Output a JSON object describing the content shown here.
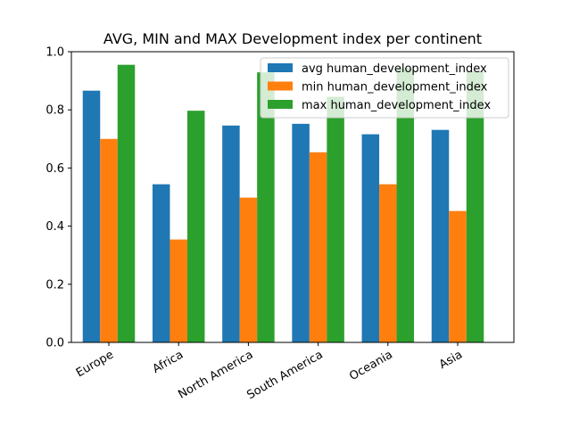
{
  "chart_data": {
    "type": "bar",
    "title": "AVG, MIN and MAX Development index per continent",
    "xlabel": "",
    "ylabel": "",
    "categories": [
      "Europe",
      "Africa",
      "North America",
      "South America",
      "Oceania",
      "Asia"
    ],
    "series": [
      {
        "name": "avg human_development_index",
        "color": "#1f77b4",
        "values": [
          0.866,
          0.544,
          0.746,
          0.752,
          0.716,
          0.731
        ]
      },
      {
        "name": "min human_development_index",
        "color": "#ff7f0e",
        "values": [
          0.7,
          0.354,
          0.498,
          0.654,
          0.544,
          0.452
        ]
      },
      {
        "name": "max human_development_index",
        "color": "#2ca02c",
        "values": [
          0.955,
          0.797,
          0.929,
          0.845,
          0.944,
          0.933
        ]
      }
    ],
    "ylim": [
      0,
      1.0
    ],
    "yticks": [
      "0.0",
      "0.2",
      "0.4",
      "0.6",
      "0.8",
      "1.0"
    ],
    "legend_position": "top-right",
    "grid": false
  }
}
